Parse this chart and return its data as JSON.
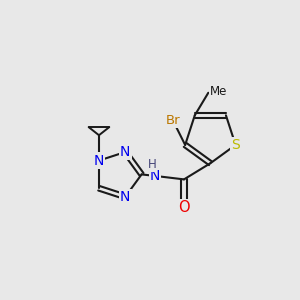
{
  "background_color": "#e8e8e8",
  "bond_color": "#1a1a1a",
  "atom_colors": {
    "N": "#0000ee",
    "S": "#bbbb00",
    "O": "#ee0000",
    "Br": "#bb7700",
    "H": "#444477",
    "C": "#1a1a1a"
  },
  "figsize": [
    3.0,
    3.0
  ],
  "dpi": 100
}
